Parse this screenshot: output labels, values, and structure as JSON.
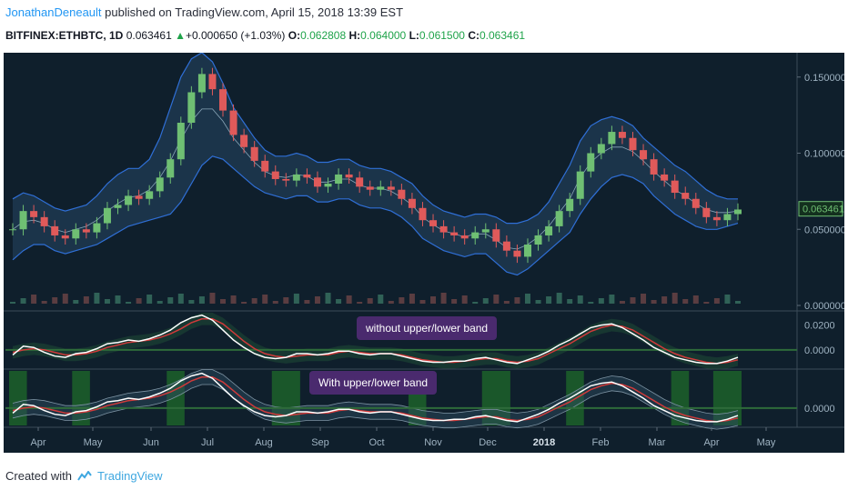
{
  "header": {
    "author": "JonathanDeneault",
    "published": " published on TradingView.com, April 15, 2018 13:39 EST",
    "symbol": "BITFINEX:ETHBTC, 1D",
    "last": "0.063461",
    "change": "+0.000650 (+1.03%)",
    "o_label": "O:",
    "o": "0.062808",
    "h_label": "H:",
    "h": "0.064000",
    "l_label": "L:",
    "l": "0.061500",
    "c_label": "C:",
    "c": "0.063461"
  },
  "footer": {
    "created": "Created with",
    "brand": "TradingView"
  },
  "colors": {
    "background": "#0f1f2c",
    "up": "#6fbf73",
    "down": "#e05a5a",
    "band": "#2f6fd6",
    "band_fill": "#1e3a52",
    "ma": "#8aa6b8",
    "highlight": "#1f6b2a",
    "label_bg": "#4a2a6e",
    "price_tag": "#6fbf73"
  },
  "annotations": {
    "panel1": "without upper/lower band",
    "panel2": "With upper/lower band"
  },
  "chart_data": {
    "type": "line",
    "description_axis": "time",
    "x_ticks": [
      "Apr",
      "May",
      "Jun",
      "Jul",
      "Aug",
      "Sep",
      "Oct",
      "Nov",
      "Dec",
      "2018",
      "Feb",
      "Mar",
      "Apr",
      "May"
    ],
    "price_axis": {
      "ticks": [
        "0.150000",
        "0.100000",
        "0.050000",
        "0.000000"
      ],
      "ylim": [
        0,
        0.16
      ],
      "current": "0.063461"
    },
    "panel1_axis": {
      "ticks": [
        "0.0200",
        "0.0000"
      ]
    },
    "panel2_axis": {
      "ticks": [
        "0.0000"
      ]
    },
    "price_close": [
      0.05,
      0.062,
      0.058,
      0.052,
      0.046,
      0.044,
      0.05,
      0.048,
      0.054,
      0.064,
      0.066,
      0.072,
      0.07,
      0.075,
      0.084,
      0.096,
      0.12,
      0.14,
      0.152,
      0.142,
      0.128,
      0.112,
      0.104,
      0.095,
      0.088,
      0.083,
      0.082,
      0.086,
      0.084,
      0.078,
      0.08,
      0.086,
      0.084,
      0.078,
      0.076,
      0.078,
      0.076,
      0.07,
      0.064,
      0.056,
      0.052,
      0.048,
      0.046,
      0.044,
      0.048,
      0.05,
      0.042,
      0.036,
      0.032,
      0.04,
      0.046,
      0.052,
      0.062,
      0.07,
      0.088,
      0.1,
      0.106,
      0.114,
      0.11,
      0.102,
      0.096,
      0.086,
      0.082,
      0.074,
      0.07,
      0.064,
      0.058,
      0.056,
      0.06,
      0.063
    ],
    "upper_band": [
      0.07,
      0.074,
      0.072,
      0.068,
      0.064,
      0.062,
      0.064,
      0.066,
      0.072,
      0.08,
      0.086,
      0.09,
      0.09,
      0.096,
      0.11,
      0.13,
      0.15,
      0.162,
      0.166,
      0.16,
      0.146,
      0.13,
      0.12,
      0.11,
      0.102,
      0.098,
      0.098,
      0.1,
      0.098,
      0.094,
      0.094,
      0.096,
      0.096,
      0.092,
      0.09,
      0.09,
      0.088,
      0.084,
      0.08,
      0.072,
      0.066,
      0.062,
      0.06,
      0.058,
      0.06,
      0.06,
      0.058,
      0.054,
      0.054,
      0.056,
      0.06,
      0.068,
      0.08,
      0.092,
      0.108,
      0.118,
      0.122,
      0.124,
      0.122,
      0.118,
      0.11,
      0.104,
      0.098,
      0.092,
      0.088,
      0.082,
      0.076,
      0.072,
      0.07,
      0.07
    ],
    "lower_band": [
      0.03,
      0.036,
      0.04,
      0.04,
      0.036,
      0.034,
      0.036,
      0.038,
      0.04,
      0.044,
      0.048,
      0.052,
      0.054,
      0.056,
      0.058,
      0.06,
      0.068,
      0.08,
      0.092,
      0.098,
      0.096,
      0.09,
      0.084,
      0.078,
      0.074,
      0.072,
      0.07,
      0.072,
      0.072,
      0.068,
      0.068,
      0.07,
      0.07,
      0.066,
      0.064,
      0.064,
      0.062,
      0.058,
      0.052,
      0.044,
      0.04,
      0.036,
      0.034,
      0.032,
      0.034,
      0.034,
      0.028,
      0.022,
      0.02,
      0.024,
      0.03,
      0.036,
      0.042,
      0.048,
      0.06,
      0.07,
      0.078,
      0.084,
      0.086,
      0.084,
      0.08,
      0.072,
      0.066,
      0.06,
      0.056,
      0.052,
      0.05,
      0.05,
      0.052,
      0.054
    ],
    "osc_fast": [
      -0.004,
      0.003,
      0.002,
      -0.002,
      -0.005,
      -0.006,
      -0.003,
      -0.002,
      0.001,
      0.005,
      0.006,
      0.008,
      0.007,
      0.009,
      0.012,
      0.016,
      0.022,
      0.026,
      0.028,
      0.024,
      0.016,
      0.008,
      0.002,
      -0.003,
      -0.006,
      -0.007,
      -0.006,
      -0.003,
      -0.003,
      -0.004,
      -0.003,
      -0.001,
      -0.001,
      -0.003,
      -0.004,
      -0.003,
      -0.003,
      -0.005,
      -0.007,
      -0.009,
      -0.01,
      -0.01,
      -0.009,
      -0.009,
      -0.007,
      -0.006,
      -0.008,
      -0.01,
      -0.011,
      -0.008,
      -0.005,
      -0.001,
      0.004,
      0.008,
      0.013,
      0.018,
      0.02,
      0.021,
      0.018,
      0.013,
      0.008,
      0.002,
      -0.002,
      -0.006,
      -0.008,
      -0.01,
      -0.011,
      -0.011,
      -0.009,
      -0.006
    ],
    "osc_slow": [
      -0.002,
      0.0,
      0.001,
      0.0,
      -0.002,
      -0.004,
      -0.004,
      -0.003,
      -0.001,
      0.002,
      0.004,
      0.006,
      0.007,
      0.008,
      0.01,
      0.013,
      0.017,
      0.022,
      0.025,
      0.025,
      0.021,
      0.014,
      0.007,
      0.001,
      -0.003,
      -0.005,
      -0.006,
      -0.005,
      -0.004,
      -0.004,
      -0.004,
      -0.002,
      -0.001,
      -0.002,
      -0.003,
      -0.003,
      -0.003,
      -0.004,
      -0.006,
      -0.008,
      -0.009,
      -0.01,
      -0.01,
      -0.009,
      -0.008,
      -0.007,
      -0.007,
      -0.009,
      -0.01,
      -0.009,
      -0.007,
      -0.003,
      0.001,
      0.005,
      0.01,
      0.015,
      0.018,
      0.02,
      0.019,
      0.016,
      0.011,
      0.006,
      0.001,
      -0.003,
      -0.006,
      -0.008,
      -0.01,
      -0.011,
      -0.01,
      -0.008
    ],
    "highlight_ranges_panel2": [
      [
        0,
        1
      ],
      [
        6,
        7
      ],
      [
        15,
        16
      ],
      [
        25,
        27
      ],
      [
        38,
        39
      ],
      [
        45,
        47
      ],
      [
        53,
        54
      ],
      [
        63,
        64
      ],
      [
        67,
        69
      ]
    ]
  }
}
